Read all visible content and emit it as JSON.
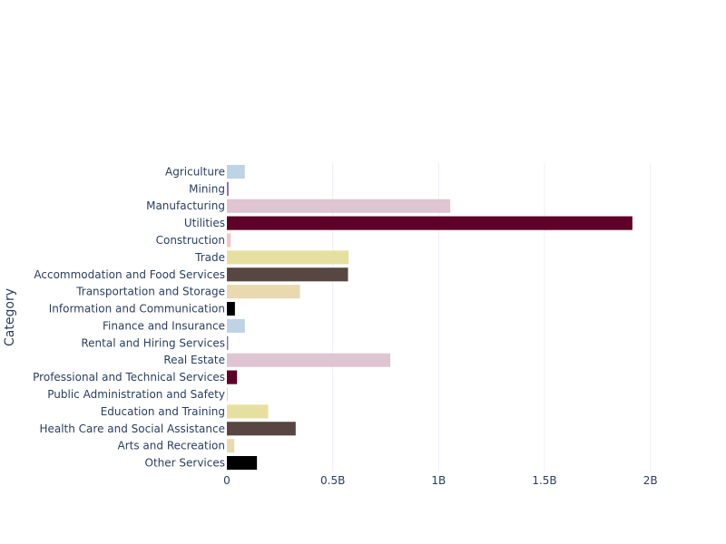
{
  "chart_data": {
    "type": "bar",
    "orientation": "horizontal",
    "ylabel": "Category",
    "xlabel": "",
    "xlim": [
      0,
      2250000000
    ],
    "x_ticks": [
      0,
      500000000,
      1000000000,
      1500000000,
      2000000000
    ],
    "x_tick_labels": [
      "0",
      "0.5B",
      "1B",
      "1.5B",
      "2B"
    ],
    "grid": true,
    "categories": [
      "Agriculture",
      "Mining",
      "Manufacturing",
      "Utilities",
      "Construction",
      "Trade",
      "Accommodation and Food Services",
      "Transportation and Storage",
      "Information and Communication",
      "Finance and Insurance",
      "Rental and Hiring Services",
      "Real Estate",
      "Professional and Technical Services",
      "Public Administration and Safety",
      "Education and Training",
      "Health Care and Social Assistance",
      "Arts and Recreation",
      "Other Services"
    ],
    "values": [
      85000000,
      8000000,
      1055000000,
      1915000000,
      18000000,
      575000000,
      572000000,
      345000000,
      38000000,
      85000000,
      6000000,
      772000000,
      48000000,
      2000000,
      195000000,
      325000000,
      35000000,
      142000000
    ],
    "colors": [
      "#bfd3e6",
      "#8c6bb1",
      "#dec5d1",
      "#5e0027",
      "#f4c5c5",
      "#e6e0a0",
      "#574641",
      "#e8d9b0",
      "#000000",
      "#bfd3e6",
      "#8c6bb1",
      "#dec5d1",
      "#5e0027",
      "#f4c5c5",
      "#e6e0a0",
      "#574641",
      "#e8d9b0",
      "#000000"
    ]
  }
}
